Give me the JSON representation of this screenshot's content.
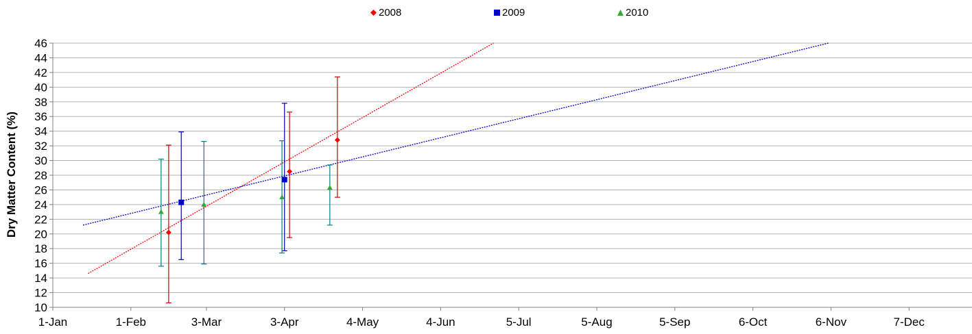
{
  "chart_data": {
    "type": "scatter",
    "title": "",
    "xlabel": "",
    "ylabel": "Dry Matter Content (%)",
    "xlim": [
      "1-Jan",
      "31-Dec"
    ],
    "ylim": [
      10,
      46
    ],
    "yticks": [
      10,
      12,
      14,
      16,
      18,
      20,
      22,
      24,
      26,
      28,
      30,
      32,
      34,
      36,
      38,
      40,
      42,
      44,
      46
    ],
    "xticks": [
      {
        "label": "1-Jan",
        "day": 0
      },
      {
        "label": "1-Feb",
        "day": 31
      },
      {
        "label": "3-Mar",
        "day": 61
      },
      {
        "label": "3-Apr",
        "day": 92
      },
      {
        "label": "4-May",
        "day": 123
      },
      {
        "label": "4-Jun",
        "day": 154
      },
      {
        "label": "5-Jul",
        "day": 185
      },
      {
        "label": "5-Aug",
        "day": 216
      },
      {
        "label": "5-Sep",
        "day": 247
      },
      {
        "label": "6-Oct",
        "day": 278
      },
      {
        "label": "6-Nov",
        "day": 309
      },
      {
        "label": "7-Dec",
        "day": 340
      }
    ],
    "grid": true,
    "legend_position": "top",
    "series": [
      {
        "name": "2008",
        "color": "#ff0000",
        "errorbar_color": "#cc0000",
        "marker": "diamond",
        "points": [
          {
            "day": 46,
            "y": 20.2,
            "low": 10.6,
            "high": 32.1
          },
          {
            "day": 94,
            "y": 28.5,
            "low": 19.5,
            "high": 36.6
          },
          {
            "day": 113,
            "y": 32.8,
            "low": 25.0,
            "high": 41.4
          }
        ],
        "trendline": {
          "x": [
            14,
            175
          ],
          "y": [
            14.6,
            46.0
          ]
        }
      },
      {
        "name": "2009",
        "color": "#0000cc",
        "errorbar_color": "#000099",
        "marker": "square",
        "points": [
          {
            "day": 51,
            "y": 24.3,
            "low": 16.5,
            "high": 33.9
          },
          {
            "day": 92,
            "y": 27.4,
            "low": 17.7,
            "high": 37.8
          }
        ],
        "trendline": {
          "x": [
            12,
            308
          ],
          "y": [
            21.2,
            46.0
          ]
        }
      },
      {
        "name": "2010",
        "color": "#33aa33",
        "errorbar_color": "#008080",
        "marker": "triangle",
        "points": [
          {
            "day": 43,
            "y": 23.0,
            "low": 15.6,
            "high": 30.2
          },
          {
            "day": 60,
            "y": 24.0,
            "low": 15.9,
            "high": 32.6
          },
          {
            "day": 91,
            "y": 25.0,
            "low": 17.4,
            "high": 32.7
          },
          {
            "day": 110,
            "y": 26.3,
            "low": 21.2,
            "high": 29.4
          }
        ]
      }
    ]
  }
}
